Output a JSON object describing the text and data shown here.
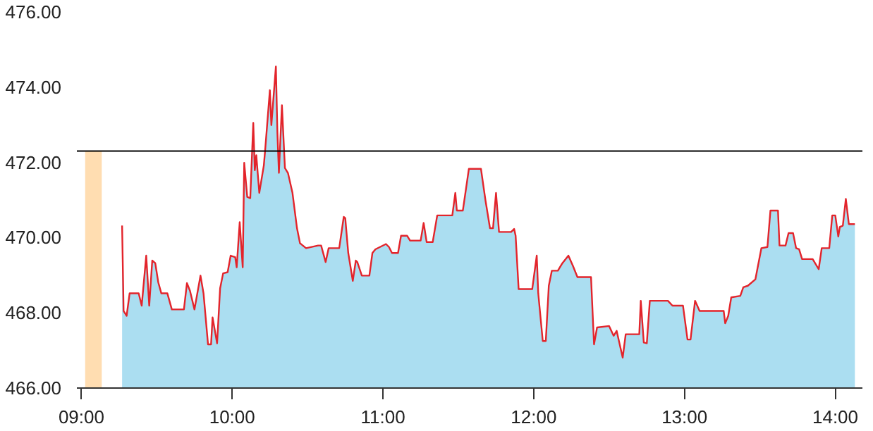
{
  "chart_data": {
    "type": "area",
    "x": [
      9.27,
      9.28,
      9.3,
      9.32,
      9.38,
      9.4,
      9.43,
      9.45,
      9.47,
      9.49,
      9.51,
      9.53,
      9.57,
      9.6,
      9.68,
      9.7,
      9.72,
      9.75,
      9.79,
      9.81,
      9.84,
      9.86,
      9.87,
      9.9,
      9.92,
      9.94,
      9.97,
      9.99,
      10.02,
      10.03,
      10.05,
      10.07,
      10.08,
      10.1,
      10.12,
      10.14,
      10.15,
      10.16,
      10.18,
      10.21,
      10.22,
      10.25,
      10.26,
      10.29,
      10.3,
      10.31,
      10.33,
      10.35,
      10.37,
      10.4,
      10.43,
      10.45,
      10.49,
      10.57,
      10.59,
      10.62,
      10.64,
      10.71,
      10.74,
      10.75,
      10.77,
      10.8,
      10.82,
      10.83,
      10.86,
      10.91,
      10.93,
      10.95,
      11.02,
      11.04,
      11.06,
      11.1,
      11.12,
      11.16,
      11.18,
      11.25,
      11.27,
      11.29,
      11.33,
      11.36,
      11.46,
      11.48,
      11.49,
      11.53,
      11.57,
      11.65,
      11.68,
      11.71,
      11.73,
      11.75,
      11.77,
      11.85,
      11.87,
      11.88,
      11.9,
      11.99,
      12.02,
      12.03,
      12.06,
      12.08,
      12.1,
      12.12,
      12.16,
      12.19,
      12.23,
      12.26,
      12.29,
      12.38,
      12.4,
      12.42,
      12.5,
      12.53,
      12.55,
      12.59,
      12.61,
      12.7,
      12.71,
      12.73,
      12.75,
      12.77,
      12.89,
      12.92,
      12.99,
      13.02,
      13.04,
      13.07,
      13.1,
      13.26,
      13.27,
      13.29,
      13.31,
      13.37,
      13.39,
      13.42,
      13.47,
      13.51,
      13.55,
      13.57,
      13.62,
      13.63,
      13.67,
      13.69,
      13.72,
      13.74,
      13.76,
      13.78,
      13.85,
      13.89,
      13.91,
      13.96,
      13.98,
      14.0,
      14.02,
      14.03,
      14.05,
      14.07,
      14.09,
      14.13
    ],
    "series": [
      {
        "color": "#8fd3ec",
        "values": [
          470.32,
          468.05,
          467.92,
          468.52,
          468.52,
          468.19,
          469.52,
          468.19,
          469.39,
          469.32,
          468.81,
          468.52,
          468.52,
          468.09,
          468.09,
          468.79,
          468.59,
          468.09,
          468.99,
          468.52,
          467.16,
          467.16,
          467.88,
          467.19,
          468.65,
          469.05,
          469.08,
          469.52,
          469.48,
          469.21,
          470.41,
          469.21,
          471.99,
          471.08,
          471.05,
          473.05,
          471.79,
          472.19,
          471.19,
          471.92,
          472.39,
          473.92,
          472.99,
          474.55,
          472.79,
          471.72,
          473.52,
          471.85,
          471.72,
          471.19,
          470.25,
          469.85,
          469.72,
          469.79,
          469.79,
          469.35,
          469.72,
          469.72,
          470.55,
          470.52,
          469.59,
          468.85,
          469.39,
          469.35,
          468.99,
          468.99,
          469.59,
          469.69,
          469.83,
          469.75,
          469.59,
          469.59,
          470.05,
          470.05,
          469.92,
          469.92,
          470.39,
          469.88,
          469.88,
          470.59,
          470.59,
          471.19,
          470.72,
          470.72,
          471.83,
          471.83,
          470.99,
          470.25,
          470.25,
          471.19,
          470.15,
          470.15,
          470.23,
          470.05,
          468.63,
          468.63,
          469.52,
          468.52,
          467.25,
          467.25,
          468.72,
          469.12,
          469.12,
          469.32,
          469.52,
          469.25,
          468.95,
          468.95,
          467.16,
          467.61,
          467.65,
          467.39,
          467.52,
          466.81,
          467.43,
          467.43,
          468.32,
          467.21,
          467.19,
          468.32,
          468.32,
          468.19,
          468.19,
          467.29,
          467.29,
          468.32,
          468.05,
          468.05,
          467.72,
          467.92,
          468.41,
          468.45,
          468.68,
          468.72,
          468.89,
          469.72,
          469.75,
          470.72,
          470.72,
          469.79,
          469.79,
          470.12,
          470.12,
          469.72,
          469.69,
          469.43,
          469.43,
          469.16,
          469.72,
          469.72,
          470.59,
          470.59,
          470.03,
          470.28,
          470.32,
          471.03,
          470.36,
          470.36
        ]
      },
      {
        "type": "bar",
        "color": "#ffd59e",
        "x": [
          9.08
        ],
        "values": [
          472.3
        ]
      },
      {
        "type": "line",
        "color": "#e3242b",
        "values": [
          470.32,
          468.05,
          467.92,
          468.52,
          468.52,
          468.19,
          469.52,
          468.19,
          469.39,
          469.32,
          468.81,
          468.52,
          468.52,
          468.09,
          468.09,
          468.79,
          468.59,
          468.09,
          468.99,
          468.52,
          467.16,
          467.16,
          467.88,
          467.19,
          468.65,
          469.05,
          469.08,
          469.52,
          469.48,
          469.21,
          470.41,
          469.21,
          471.99,
          471.08,
          471.05,
          473.05,
          471.79,
          472.19,
          471.19,
          471.92,
          472.39,
          473.92,
          472.99,
          474.55,
          472.79,
          471.72,
          473.52,
          471.85,
          471.72,
          471.19,
          470.25,
          469.85,
          469.72,
          469.79,
          469.79,
          469.35,
          469.72,
          469.72,
          470.55,
          470.52,
          469.59,
          468.85,
          469.39,
          469.35,
          468.99,
          468.99,
          469.59,
          469.69,
          469.83,
          469.75,
          469.59,
          469.59,
          470.05,
          470.05,
          469.92,
          469.92,
          470.39,
          469.88,
          469.88,
          470.59,
          470.59,
          471.19,
          470.72,
          470.72,
          471.83,
          471.83,
          470.99,
          470.25,
          470.25,
          471.19,
          470.15,
          470.15,
          470.23,
          470.05,
          468.63,
          468.63,
          469.52,
          468.52,
          467.25,
          467.25,
          468.72,
          469.12,
          469.12,
          469.32,
          469.52,
          469.25,
          468.95,
          468.95,
          467.16,
          467.61,
          467.65,
          467.39,
          467.52,
          466.81,
          467.43,
          467.43,
          468.32,
          467.21,
          467.19,
          468.32,
          468.32,
          468.19,
          468.19,
          467.29,
          467.29,
          468.32,
          468.05,
          468.05,
          467.72,
          467.92,
          468.41,
          468.45,
          468.68,
          468.72,
          468.89,
          469.72,
          469.75,
          470.72,
          470.72,
          469.79,
          469.79,
          470.12,
          470.12,
          469.72,
          469.69,
          469.43,
          469.43,
          469.16,
          469.72,
          469.72,
          470.59,
          470.59,
          470.03,
          470.28,
          470.32,
          471.03,
          470.36,
          470.36
        ]
      }
    ],
    "ref_lines": [
      {
        "axis": "y",
        "value": 472.3,
        "color": "#000000"
      }
    ],
    "xlim": [
      8.97,
      14.18
    ],
    "xticks": [
      {
        "value": 9,
        "label": "09:00"
      },
      {
        "value": 10,
        "label": "10:00"
      },
      {
        "value": 11,
        "label": "11:00"
      },
      {
        "value": 12,
        "label": "12:00"
      },
      {
        "value": 13,
        "label": "13:00"
      },
      {
        "value": 14,
        "label": "14:00"
      }
    ],
    "ylim": [
      466,
      476
    ],
    "yticks": [
      {
        "value": 466,
        "label": "466.00"
      },
      {
        "value": 468,
        "label": "468.00"
      },
      {
        "value": 470,
        "label": "470.00"
      },
      {
        "value": 472,
        "label": "472.00"
      },
      {
        "value": 474,
        "label": "474.00"
      },
      {
        "value": 476,
        "label": "476.00"
      }
    ],
    "grid": false
  }
}
